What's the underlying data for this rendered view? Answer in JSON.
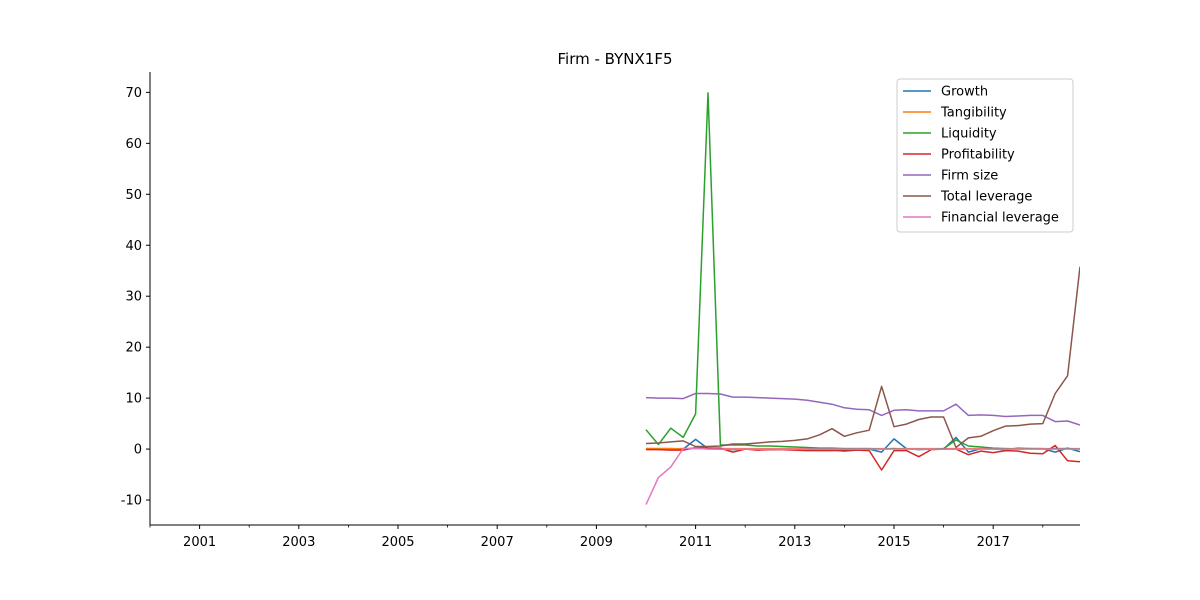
{
  "chart_data": {
    "type": "line",
    "title": "Firm - BYNX1F5",
    "xlabel": "",
    "ylabel": "",
    "xlim": [
      2000.0,
      2018.75
    ],
    "ylim": [
      -14.9,
      74
    ],
    "x_ticks": [
      2001,
      2003,
      2005,
      2007,
      2009,
      2011,
      2013,
      2015,
      2017
    ],
    "y_ticks": [
      -10,
      0,
      10,
      20,
      30,
      40,
      50,
      60,
      70
    ],
    "grid": false,
    "legend_position": "top-right",
    "x": [
      2010.0,
      2010.25,
      2010.5,
      2010.75,
      2011.0,
      2011.25,
      2011.5,
      2011.75,
      2012.0,
      2012.25,
      2012.5,
      2012.75,
      2013.0,
      2013.25,
      2013.5,
      2013.75,
      2014.0,
      2014.25,
      2014.5,
      2014.75,
      2015.0,
      2015.25,
      2015.5,
      2015.75,
      2016.0,
      2016.25,
      2016.5,
      2016.75,
      2017.0,
      2017.25,
      2017.5,
      2017.75,
      2018.0,
      2018.25,
      2018.5,
      2018.75
    ],
    "series": [
      {
        "name": "Growth",
        "color": "#1f77b4",
        "values": [
          0.1,
          0.1,
          0.1,
          0.0,
          1.9,
          0.1,
          0.0,
          -0.1,
          0.0,
          0.0,
          -0.1,
          0.0,
          0.0,
          -0.1,
          -0.1,
          -0.2,
          -0.4,
          -0.2,
          0.0,
          -0.6,
          2.0,
          0.1,
          -0.1,
          0.0,
          0.0,
          2.3,
          -0.6,
          0.1,
          0.0,
          -0.1,
          0.2,
          0.1,
          0.1,
          -0.6,
          0.2,
          -0.5
        ]
      },
      {
        "name": "Tangibility",
        "color": "#ff7f0e",
        "values": [
          0.1,
          0.1,
          0.1,
          0.1,
          0.1,
          0.1,
          0.1,
          0.1,
          0.1,
          0.1,
          0.1,
          0.1,
          0.1,
          0.1,
          0.1,
          0.1,
          0.1,
          0.1,
          0.1,
          0.1,
          0.1,
          0.1,
          0.1,
          0.1,
          0.1,
          0.1,
          0.1,
          0.1,
          0.1,
          0.1,
          0.1,
          0.1,
          0.1,
          0.1,
          0.1,
          0.1
        ]
      },
      {
        "name": "Liquidity",
        "color": "#2ca02c",
        "values": [
          3.8,
          0.9,
          4.1,
          2.3,
          6.9,
          69.9,
          0.8,
          0.8,
          0.8,
          0.6,
          0.6,
          0.5,
          0.4,
          0.3,
          0.2,
          0.2,
          0.1,
          0.1,
          0.1,
          0.0,
          0.1,
          0.0,
          0.0,
          0.0,
          0.1,
          1.8,
          0.6,
          0.4,
          0.2,
          0.1,
          0.0,
          0.1,
          0.0,
          0.1,
          0.1,
          0.0
        ]
      },
      {
        "name": "Profitability",
        "color": "#d62728",
        "values": [
          -0.1,
          -0.1,
          -0.2,
          -0.2,
          0.3,
          0.2,
          0.2,
          -0.6,
          0.0,
          -0.2,
          -0.1,
          -0.1,
          -0.2,
          -0.3,
          -0.3,
          -0.3,
          -0.2,
          -0.2,
          -0.3,
          -4.1,
          -0.3,
          -0.3,
          -1.5,
          -0.1,
          0.0,
          0.0,
          -1.1,
          -0.4,
          -0.7,
          -0.3,
          -0.4,
          -0.8,
          -0.9,
          0.7,
          -2.3,
          -2.5
        ]
      },
      {
        "name": "Firm size",
        "color": "#9467bd",
        "values": [
          10.1,
          10.0,
          10.0,
          9.9,
          10.9,
          10.9,
          10.8,
          10.2,
          10.2,
          10.1,
          10.0,
          9.9,
          9.8,
          9.6,
          9.2,
          8.8,
          8.1,
          7.8,
          7.7,
          6.6,
          7.6,
          7.7,
          7.5,
          7.5,
          7.5,
          8.8,
          6.6,
          6.7,
          6.6,
          6.4,
          6.5,
          6.6,
          6.6,
          5.4,
          5.5,
          4.7
        ]
      },
      {
        "name": "Total leverage",
        "color": "#8c564b",
        "values": [
          1.1,
          1.2,
          1.4,
          1.6,
          0.5,
          0.5,
          0.6,
          1.0,
          1.0,
          1.2,
          1.4,
          1.5,
          1.7,
          2.0,
          2.8,
          4.0,
          2.5,
          3.2,
          3.7,
          12.3,
          4.4,
          4.9,
          5.8,
          6.3,
          6.3,
          0.3,
          2.2,
          2.5,
          3.6,
          4.5,
          4.6,
          4.9,
          5.0,
          10.9,
          14.4,
          35.8
        ]
      },
      {
        "name": "Financial leverage",
        "color": "#e377c2",
        "values": [
          -10.9,
          -5.6,
          -3.5,
          0.1,
          0.2,
          0.0,
          0.0,
          0.0,
          0.0,
          0.0,
          0.0,
          0.0,
          0.0,
          0.0,
          0.0,
          0.0,
          0.0,
          0.0,
          0.0,
          0.0,
          0.0,
          0.0,
          0.0,
          0.0,
          0.0,
          0.0,
          0.0,
          0.0,
          0.0,
          0.0,
          0.0,
          0.0,
          0.0,
          0.0,
          0.0,
          0.0
        ]
      }
    ]
  }
}
